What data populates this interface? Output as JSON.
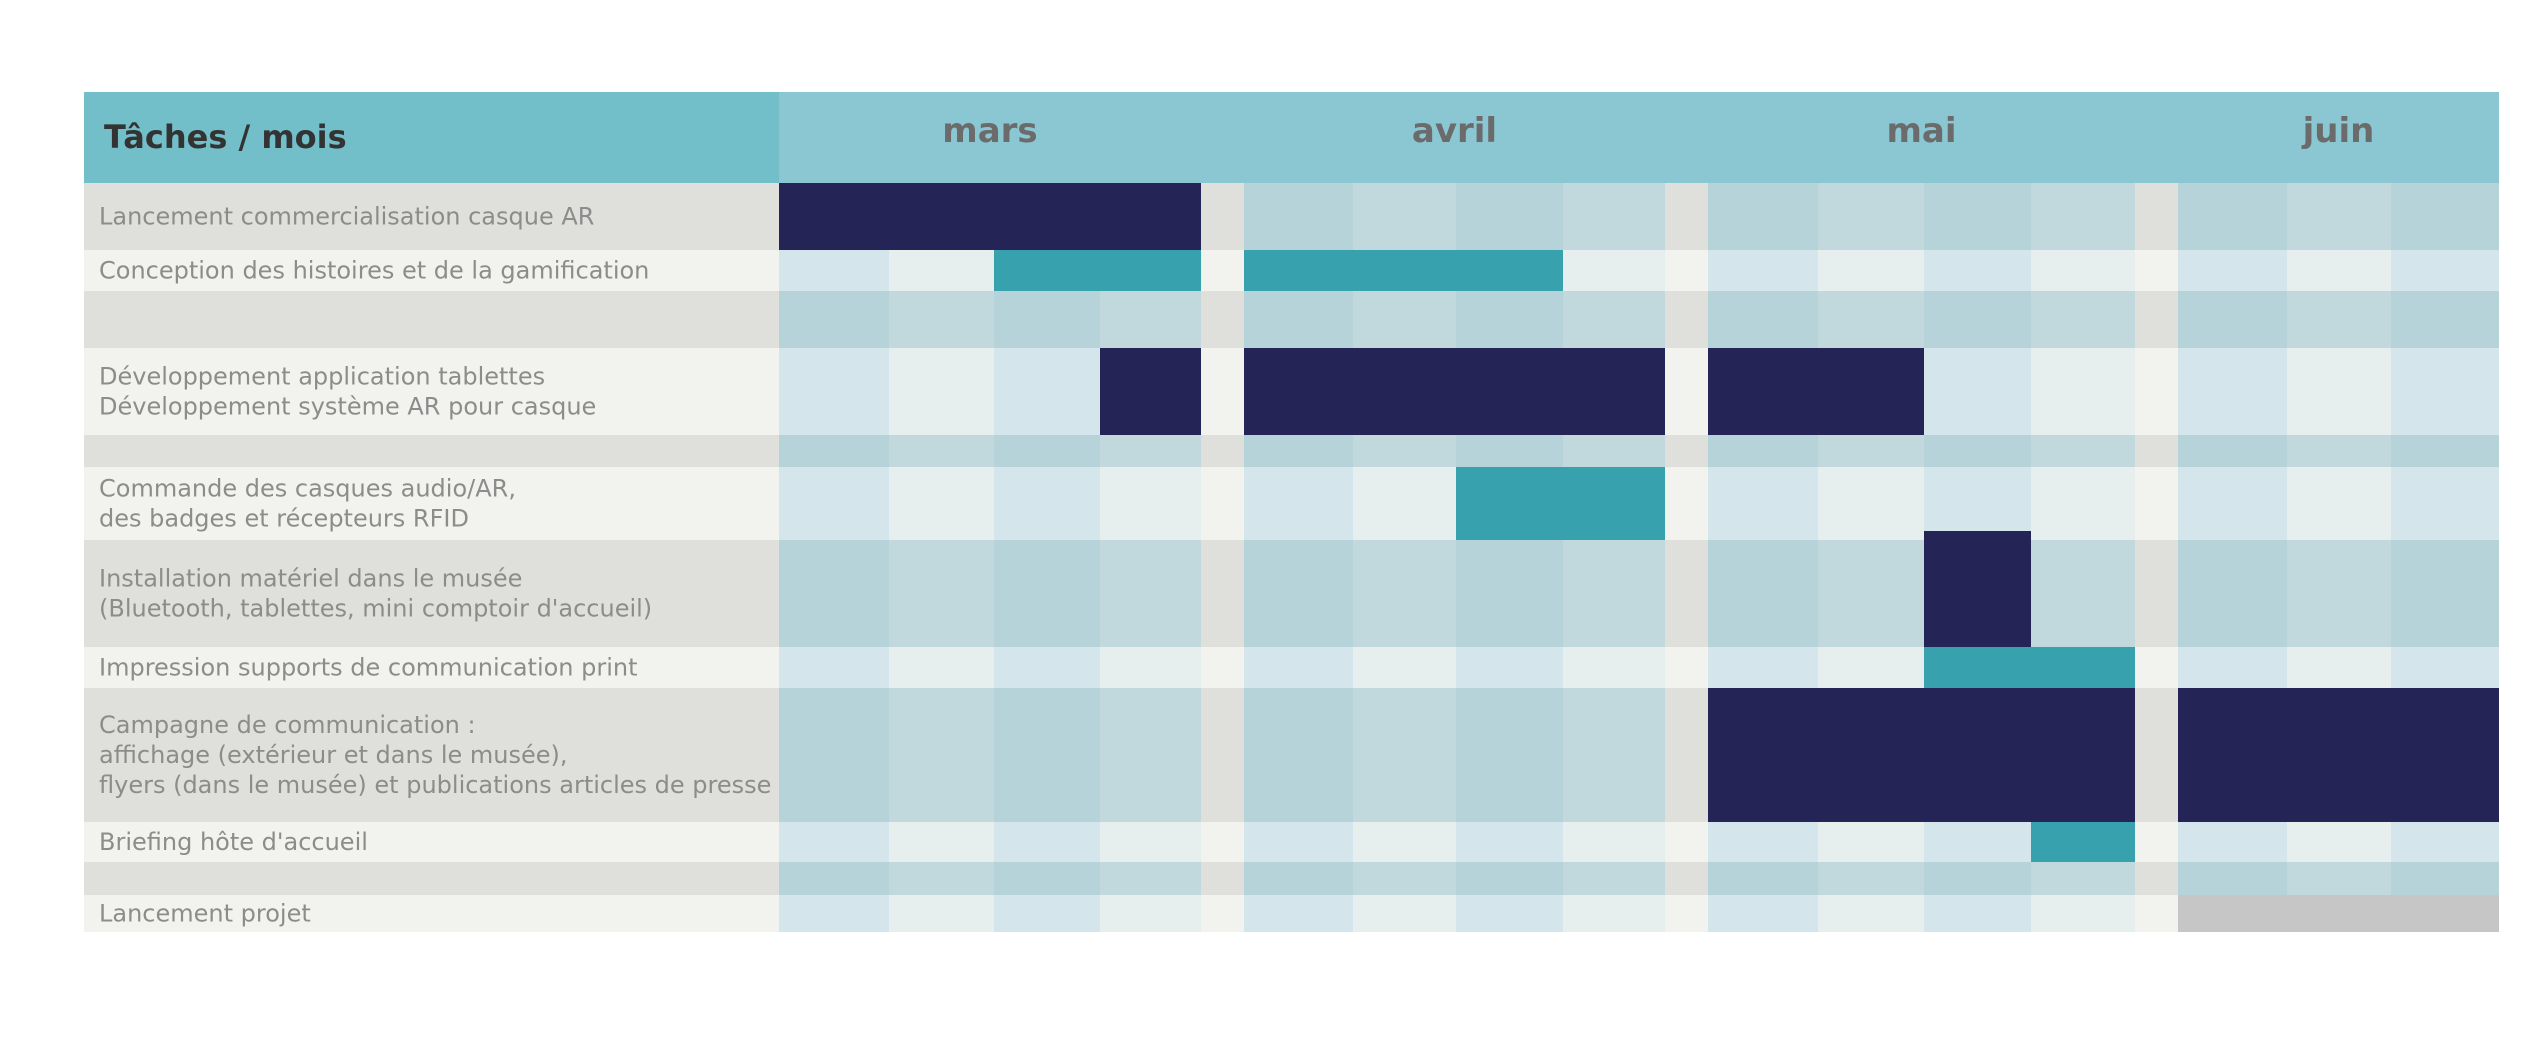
{
  "chart_data": {
    "type": "gantt",
    "header": {
      "title": "Tâches / mois"
    },
    "months": [
      {
        "label": "mars",
        "weeks": 4
      },
      {
        "label": "avril",
        "weeks": 4
      },
      {
        "label": "mai",
        "weeks": 4
      },
      {
        "label": "juin",
        "weeks": 3
      }
    ],
    "tasks": [
      {
        "lines": [
          "Lancement commercialisation casque AR"
        ],
        "bars": [
          {
            "start": 0,
            "end": 4,
            "color": "navy"
          }
        ]
      },
      {
        "lines": [
          "Conception des histoires et de la gamification"
        ],
        "bars": [
          {
            "start": 2,
            "end": 4,
            "color": "teal"
          },
          {
            "start": 4,
            "end": 7,
            "color": "teal"
          }
        ]
      },
      {
        "lines": [],
        "bars": []
      },
      {
        "lines": [
          "Développement application tablettes",
          "Développement système AR pour casque"
        ],
        "bars": [
          {
            "start": 3,
            "end": 4,
            "color": "navy"
          },
          {
            "start": 4,
            "end": 8,
            "color": "navy"
          },
          {
            "start": 8,
            "end": 10,
            "color": "navy"
          }
        ]
      },
      {
        "lines": [],
        "bars": []
      },
      {
        "lines": [
          "Commande des casques audio/AR,",
          "des badges et récepteurs RFID"
        ],
        "bars": [
          {
            "start": 6,
            "end": 8,
            "color": "teal"
          }
        ]
      },
      {
        "lines": [
          "Installation matériel dans le musée",
          "(Bluetooth, tablettes, mini comptoir d'accueil)"
        ],
        "bars": [
          {
            "start": 10,
            "end": 11,
            "color": "navy"
          }
        ]
      },
      {
        "lines": [
          "Impression supports de communication print"
        ],
        "bars": [
          {
            "start": 10,
            "end": 12,
            "color": "teal"
          }
        ]
      },
      {
        "lines": [
          "Campagne de communication :",
          "affichage (extérieur et dans le musée),",
          "flyers (dans le musée) et publications articles de presse"
        ],
        "bars": [
          {
            "start": 8,
            "end": 12,
            "color": "navy"
          },
          {
            "start": 12,
            "end": 15,
            "color": "navy"
          }
        ]
      },
      {
        "lines": [
          "Briefing hôte d'accueil"
        ],
        "bars": [
          {
            "start": 11,
            "end": 12,
            "color": "teal"
          }
        ]
      },
      {
        "lines": [],
        "bars": []
      },
      {
        "lines": [
          "Lancement projet"
        ],
        "bars": [
          {
            "start": 12,
            "end": 15,
            "color": "grey"
          }
        ]
      }
    ],
    "colors": {
      "header_left": "#72bec9",
      "header_months": "#8ac7d3",
      "navy": "#252457",
      "teal": "#38a1ae",
      "grey": "#c6c6c6",
      "label_dark": "#dfdfdb",
      "label_light": "#f2f2ee",
      "week_dark": [
        "#b5d3d8",
        "#c1d8dc"
      ],
      "week_light": [
        "#d4e6eb",
        "#e7eeee"
      ]
    }
  }
}
